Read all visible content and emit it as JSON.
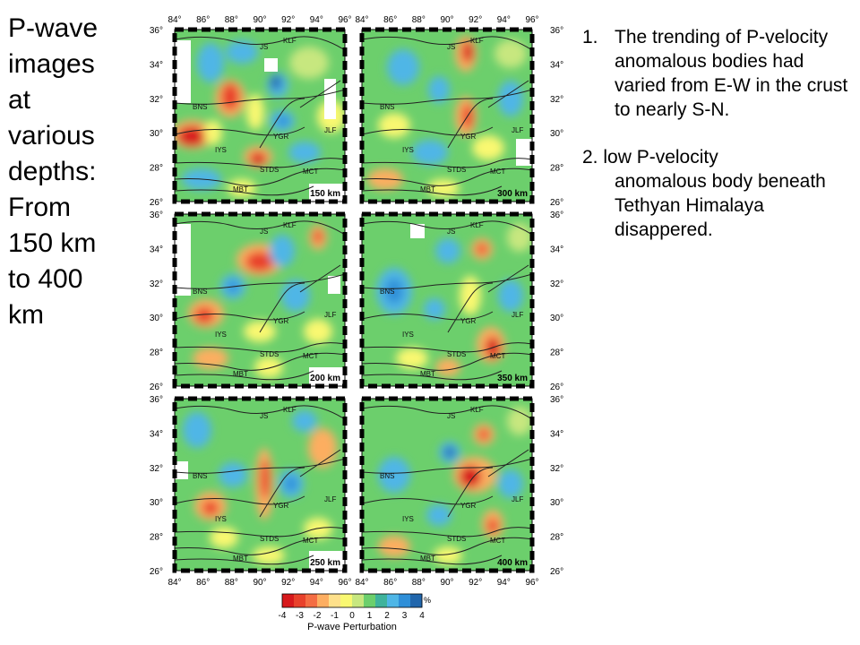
{
  "title": "P-wave images at various depths: From 150 km to 400 km",
  "notes": [
    {
      "number": "1.",
      "text": "The trending of P-velocity anomalous bodies had varied from E-W in the crust to nearly S-N."
    },
    {
      "first_line": "2. low P-velocity",
      "rest": "anomalous body beneath Tethyan Himalaya disappered."
    }
  ],
  "figure": {
    "lon_ticks": [
      "84°",
      "86°",
      "88°",
      "90°",
      "92°",
      "94°",
      "96°"
    ],
    "lat_ticks": [
      "36°",
      "34°",
      "32°",
      "30°",
      "28°",
      "26°"
    ],
    "panels": [
      {
        "depth_label": "150 km"
      },
      {
        "depth_label": "300 km"
      },
      {
        "depth_label": "200 km"
      },
      {
        "depth_label": "350 km"
      },
      {
        "depth_label": "250 km"
      },
      {
        "depth_label": "400 km"
      }
    ],
    "fault_labels": [
      "KLF",
      "JS",
      "BNS",
      "JLF",
      "YGR",
      "IYS",
      "STDS",
      "MCT",
      "MBT"
    ],
    "colorbar": {
      "title": "P-wave Perturbation",
      "unit": "%",
      "ticks": [
        "-4",
        "-3",
        "-2",
        "-1",
        "0",
        "1",
        "2",
        "3",
        "4"
      ],
      "colors": [
        "#d7191c",
        "#e8412b",
        "#f46d43",
        "#fdae61",
        "#fee08b",
        "#f9f871",
        "#c7e77f",
        "#6ccf6c",
        "#3fb39c",
        "#4fb6e6",
        "#2f8fd8",
        "#2166ac"
      ]
    }
  }
}
